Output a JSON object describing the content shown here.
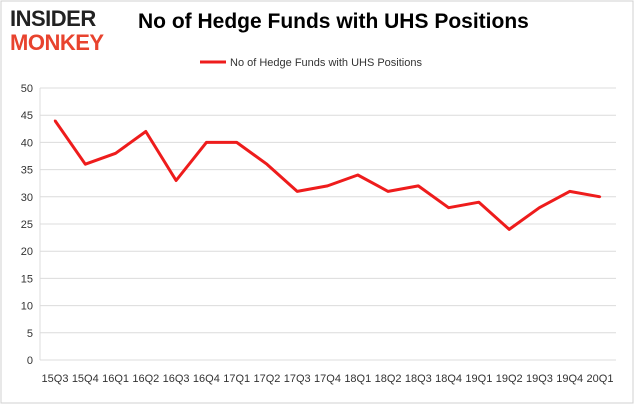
{
  "logo": {
    "line1": "INSIDER",
    "line2": "MONKEY",
    "color_dark": "#222222",
    "color_accent": "#e8432e"
  },
  "chart_data": {
    "type": "line",
    "title": "No of Hedge Funds with UHS Positions",
    "xlabel": "",
    "ylabel": "",
    "categories": [
      "15Q3",
      "15Q4",
      "16Q1",
      "16Q2",
      "16Q3",
      "16Q4",
      "17Q1",
      "17Q2",
      "17Q3",
      "17Q4",
      "18Q1",
      "18Q2",
      "18Q3",
      "18Q4",
      "19Q1",
      "19Q2",
      "19Q3",
      "19Q4",
      "20Q1"
    ],
    "series": [
      {
        "name": "No of Hedge Funds with UHS Positions",
        "color": "#ee1c1c",
        "values": [
          44,
          36,
          38,
          42,
          33,
          40,
          40,
          36,
          31,
          32,
          34,
          31,
          32,
          28,
          29,
          24,
          28,
          31,
          30
        ]
      }
    ],
    "ylim": [
      0,
      50
    ],
    "yticks": [
      0,
      5,
      10,
      15,
      20,
      25,
      30,
      35,
      40,
      45,
      50
    ],
    "grid": true,
    "legend": "top-center"
  }
}
